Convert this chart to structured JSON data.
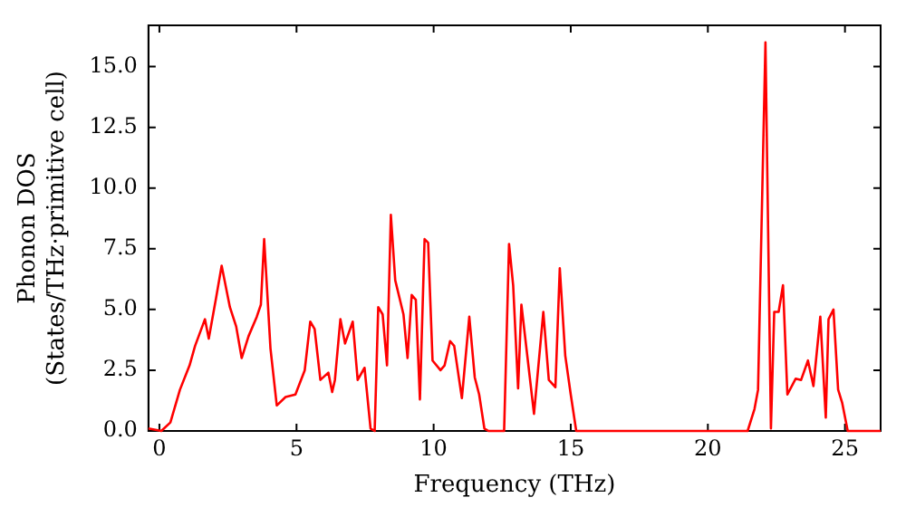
{
  "chart_data": {
    "type": "line",
    "xlabel": "Frequency (THz)",
    "ylabel": "Phonon DOS\n(States/THz·primitive cell)",
    "x": [
      -0.4,
      0.07,
      0.4,
      0.75,
      1.1,
      1.3,
      1.66,
      1.8,
      2.07,
      2.27,
      2.57,
      2.8,
      3.0,
      3.25,
      3.55,
      3.7,
      3.82,
      4.05,
      4.28,
      4.6,
      4.96,
      5.3,
      5.5,
      5.66,
      5.87,
      6.16,
      6.3,
      6.4,
      6.6,
      6.77,
      7.05,
      7.23,
      7.48,
      7.7,
      7.85,
      7.98,
      8.14,
      8.3,
      8.44,
      8.6,
      8.9,
      9.05,
      9.2,
      9.35,
      9.5,
      9.67,
      9.8,
      9.96,
      10.25,
      10.4,
      10.6,
      10.75,
      11.03,
      11.3,
      11.5,
      11.66,
      11.85,
      12.0,
      12.57,
      12.75,
      12.9,
      13.08,
      13.2,
      13.66,
      14.0,
      14.2,
      14.44,
      14.6,
      14.8,
      15.0,
      15.2,
      21.45,
      21.7,
      21.83,
      22.1,
      22.3,
      22.42,
      22.58,
      22.74,
      22.9,
      23.2,
      23.4,
      23.65,
      23.85,
      24.1,
      24.3,
      24.4,
      24.58,
      24.75,
      24.9,
      25.1,
      26.3
    ],
    "series": [
      {
        "color": "#ff0000",
        "values": [
          0.1,
          0,
          0.35,
          1.7,
          2.7,
          3.5,
          4.6,
          3.8,
          5.5,
          6.8,
          5.1,
          4.3,
          3.0,
          3.9,
          4.7,
          5.2,
          7.9,
          3.4,
          1.05,
          1.4,
          1.5,
          2.5,
          4.5,
          4.2,
          2.1,
          2.4,
          1.6,
          2.1,
          4.6,
          3.6,
          4.5,
          2.1,
          2.6,
          0.1,
          0,
          5.1,
          4.8,
          2.7,
          8.9,
          6.2,
          4.8,
          3.0,
          5.6,
          5.4,
          1.3,
          7.9,
          7.75,
          2.9,
          2.5,
          2.7,
          3.7,
          3.5,
          1.35,
          4.7,
          2.2,
          1.5,
          0.1,
          0,
          0,
          7.7,
          6.0,
          1.75,
          5.2,
          0.7,
          4.9,
          2.1,
          1.8,
          6.7,
          3.1,
          1.5,
          0,
          0,
          0.9,
          1.7,
          16.0,
          0.1,
          4.9,
          4.9,
          6.0,
          1.5,
          2.15,
          2.1,
          2.9,
          1.85,
          4.7,
          0.55,
          4.6,
          5.0,
          1.7,
          1.15,
          0,
          0
        ]
      }
    ],
    "xlim": [
      -0.4,
      26.3
    ],
    "xticks": [
      0,
      5,
      10,
      15,
      20,
      25
    ],
    "ylim": [
      0,
      16.7
    ],
    "yticks": [
      {
        "value": 0,
        "label": "0.0"
      },
      {
        "value": 2.5,
        "label": "2.5"
      },
      {
        "value": 5,
        "label": "5.0"
      },
      {
        "value": 7.5,
        "label": "7.5"
      },
      {
        "value": 10,
        "label": "10.0"
      },
      {
        "value": 12.5,
        "label": "12.5"
      },
      {
        "value": 15,
        "label": "15.0"
      }
    ],
    "grid": false,
    "legend": false,
    "marker": "none",
    "line_style": "solid"
  }
}
